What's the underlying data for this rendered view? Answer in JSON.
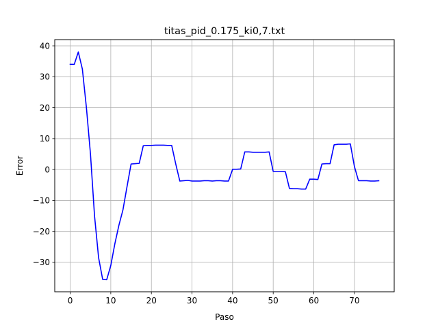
{
  "chart_data": {
    "type": "line",
    "title": "titas_pid_0.175_ki0,7.txt",
    "xlabel": "Paso",
    "ylabel": "Error",
    "xlim": [
      -3.8,
      79.8
    ],
    "ylim": [
      -39.5,
      42.0
    ],
    "x_ticks": [
      0,
      10,
      20,
      30,
      40,
      50,
      60,
      70
    ],
    "y_ticks": [
      -30,
      -20,
      -10,
      0,
      10,
      20,
      30,
      40
    ],
    "x_tick_labels": [
      "0",
      "10",
      "20",
      "30",
      "40",
      "50",
      "60",
      "70"
    ],
    "y_tick_labels": [
      "−30",
      "−20",
      "−10",
      "0",
      "10",
      "20",
      "30",
      "40"
    ],
    "grid": true,
    "series": [
      {
        "color": "#0000ff",
        "x": [
          0,
          1,
          2,
          3,
          4,
          5,
          6,
          7,
          8,
          9,
          10,
          11,
          12,
          13,
          14,
          15,
          16,
          17,
          18,
          19,
          20,
          21,
          22,
          23,
          24,
          25,
          26,
          27,
          28,
          29,
          30,
          31,
          32,
          33,
          34,
          35,
          36,
          37,
          38,
          39,
          40,
          41,
          42,
          43,
          44,
          45,
          46,
          47,
          48,
          49,
          50,
          51,
          52,
          53,
          54,
          55,
          56,
          57,
          58,
          59,
          60,
          61,
          62,
          63,
          64,
          65,
          66,
          67,
          68,
          69,
          70,
          71,
          72,
          73,
          74,
          75,
          76
        ],
        "y": [
          34.0,
          34.0,
          38.0,
          32.5,
          20.0,
          5.0,
          -15.0,
          -28.5,
          -35.5,
          -35.6,
          -31.0,
          -24.0,
          -18.0,
          -13.0,
          -5.5,
          1.8,
          1.9,
          2.0,
          7.7,
          7.8,
          7.8,
          7.9,
          7.9,
          7.9,
          7.8,
          7.8,
          1.8,
          -3.7,
          -3.6,
          -3.5,
          -3.7,
          -3.7,
          -3.7,
          -3.6,
          -3.6,
          -3.7,
          -3.6,
          -3.6,
          -3.7,
          -3.7,
          0.1,
          0.1,
          0.2,
          5.7,
          5.7,
          5.6,
          5.6,
          5.6,
          5.6,
          5.7,
          -0.6,
          -0.6,
          -0.6,
          -0.7,
          -6.1,
          -6.2,
          -6.2,
          -6.3,
          -6.3,
          -3.1,
          -3.1,
          -3.2,
          1.8,
          1.9,
          1.9,
          8.0,
          8.2,
          8.2,
          8.2,
          8.3,
          1.0,
          -3.6,
          -3.6,
          -3.6,
          -3.7,
          -3.7,
          -3.6
        ]
      }
    ]
  }
}
